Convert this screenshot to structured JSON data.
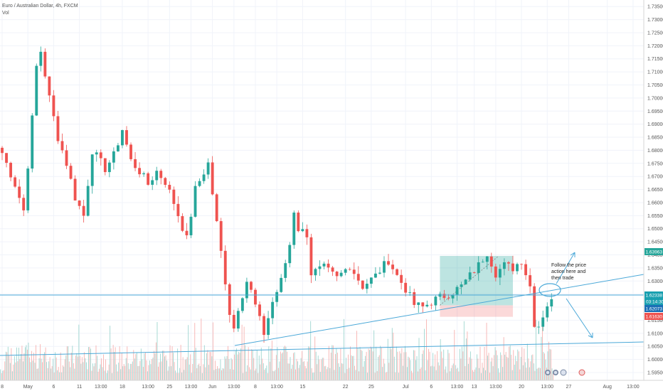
{
  "header": {
    "symbol": "Euro / Australian Dollar, 4h, FXCM",
    "volume_label": "Vol"
  },
  "colors": {
    "up": "#26a69a",
    "down": "#ef5350",
    "vol_up": "#9fd6d0",
    "vol_down": "#f7b3b1",
    "grid": "#f0f3fa",
    "trendline": "#4aa8d8",
    "long_profit_zone": "#26a69a",
    "long_stop_zone": "#ef5350"
  },
  "chart_data": {
    "type": "candlestick",
    "title": "Euro / Australian Dollar, 4h, FXCM",
    "y_range": [
      1.592,
      1.7375
    ],
    "y_ticks": [
      "1.73500",
      "1.73000",
      "1.72500",
      "1.72000",
      "1.71500",
      "1.71000",
      "1.70500",
      "1.70000",
      "1.69500",
      "1.69000",
      "1.68500",
      "1.68000",
      "1.67500",
      "1.67000",
      "1.66500",
      "1.66000",
      "1.65500",
      "1.65000",
      "1.64500",
      "1.64000",
      "1.63500",
      "1.63000",
      "1.62500",
      "1.62000",
      "1.61500",
      "1.61000",
      "1.60500",
      "1.60000",
      "1.59500"
    ],
    "y_tick_values": [
      1.735,
      1.73,
      1.725,
      1.72,
      1.715,
      1.71,
      1.705,
      1.7,
      1.695,
      1.69,
      1.685,
      1.68,
      1.675,
      1.67,
      1.665,
      1.66,
      1.655,
      1.65,
      1.645,
      1.64,
      1.635,
      1.63,
      1.625,
      1.62,
      1.615,
      1.61,
      1.605,
      1.6,
      1.595
    ],
    "x_ticks": [
      "8",
      "May",
      "6",
      "11",
      "13:00",
      "18",
      "13:00",
      "25",
      "13:00",
      "Jun",
      "13:00",
      "8",
      "13:00",
      "15",
      "22",
      "25",
      "Jul",
      "6",
      "13:00",
      "13",
      "13:00",
      "20",
      "13:00",
      "27",
      "Aug",
      "13:00"
    ],
    "x_tick_index": [
      0,
      6,
      12,
      18,
      23,
      28,
      34,
      39,
      44,
      49,
      54,
      59,
      64,
      70,
      80,
      86,
      94,
      100,
      106,
      110,
      115,
      121,
      127,
      132,
      141,
      147
    ],
    "price_path": [
      [
        0,
        1.679
      ],
      [
        3,
        1.667
      ],
      [
        5,
        1.657
      ],
      [
        7,
        1.692
      ],
      [
        8,
        1.712
      ],
      [
        9,
        1.718
      ],
      [
        11,
        1.7
      ],
      [
        13,
        1.685
      ],
      [
        15,
        1.675
      ],
      [
        17,
        1.662
      ],
      [
        19,
        1.655
      ],
      [
        21,
        1.68
      ],
      [
        24,
        1.673
      ],
      [
        26,
        1.678
      ],
      [
        28,
        1.688
      ],
      [
        30,
        1.676
      ],
      [
        32,
        1.672
      ],
      [
        34,
        1.667
      ],
      [
        36,
        1.672
      ],
      [
        38,
        1.668
      ],
      [
        40,
        1.66
      ],
      [
        43,
        1.646
      ],
      [
        45,
        1.665
      ],
      [
        48,
        1.675
      ],
      [
        50,
        1.652
      ],
      [
        52,
        1.63
      ],
      [
        53,
        1.618
      ],
      [
        54,
        1.612
      ],
      [
        55,
        1.62
      ],
      [
        57,
        1.63
      ],
      [
        58,
        1.626
      ],
      [
        60,
        1.615
      ],
      [
        61,
        1.61
      ],
      [
        63,
        1.622
      ],
      [
        65,
        1.63
      ],
      [
        67,
        1.644
      ],
      [
        68,
        1.657
      ],
      [
        69,
        1.65
      ],
      [
        71,
        1.648
      ],
      [
        72,
        1.633
      ],
      [
        75,
        1.635
      ],
      [
        78,
        1.631
      ],
      [
        81,
        1.636
      ],
      [
        84,
        1.628
      ],
      [
        87,
        1.632
      ],
      [
        90,
        1.638
      ],
      [
        92,
        1.632
      ],
      [
        94,
        1.627
      ],
      [
        96,
        1.621
      ],
      [
        98,
        1.62
      ],
      [
        101,
        1.623
      ],
      [
        104,
        1.625
      ],
      [
        107,
        1.628
      ],
      [
        109,
        1.632
      ],
      [
        111,
        1.636
      ],
      [
        113,
        1.641
      ],
      [
        115,
        1.633
      ],
      [
        117,
        1.636
      ],
      [
        119,
        1.635
      ],
      [
        121,
        1.638
      ],
      [
        123,
        1.628
      ],
      [
        124,
        1.614
      ],
      [
        125,
        1.613
      ],
      [
        127,
        1.621
      ],
      [
        128,
        1.622
      ]
    ],
    "current_price": "1.62338",
    "countdown": "03:14:30",
    "price_labels": [
      {
        "text": "1.63963",
        "kind": "target"
      },
      {
        "text": "1.62338",
        "kind": "current"
      },
      {
        "text": "1.62073",
        "kind": "entry"
      },
      {
        "text": "1.61630",
        "kind": "stop"
      }
    ],
    "annotation": "Follow the price action here and then trade",
    "annotation_lines": [
      "Follow the price",
      "action here and",
      "then trade"
    ],
    "long_position": {
      "entry": 1.6207,
      "target": 1.6396,
      "stop": 1.6163,
      "from_index": 102,
      "to_index": 119
    }
  }
}
